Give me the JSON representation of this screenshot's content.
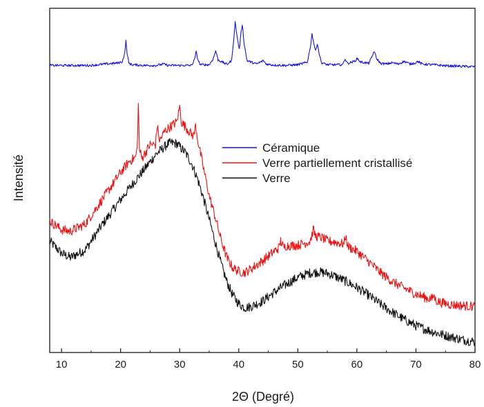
{
  "chart_data": {
    "type": "line",
    "title": "",
    "xlabel": "2Θ (Degré)",
    "ylabel": "Intensité",
    "xlim": [
      8,
      80
    ],
    "ylim": [
      0,
      100
    ],
    "xticks": [
      10,
      20,
      30,
      40,
      50,
      60,
      70,
      80
    ],
    "xtick_labels": [
      "10",
      "20",
      "30",
      "40",
      "50",
      "60",
      "70",
      "80"
    ],
    "yticks_shown": false,
    "grid": false,
    "legend_position": "center-right",
    "series": [
      {
        "name": "Céramique",
        "color": "#1010e8",
        "x": [
          8,
          12,
          15,
          18,
          19.5,
          20.3,
          20.7,
          20.9,
          21.1,
          21.4,
          22,
          24,
          26,
          27.3,
          28,
          30,
          32,
          32.5,
          32.8,
          33.1,
          33.5,
          35,
          35.7,
          36.1,
          36.5,
          38,
          38.8,
          39.2,
          39.4,
          39.7,
          40.1,
          40.4,
          40.6,
          40.9,
          41.4,
          43,
          44.2,
          44.6,
          46,
          48,
          50,
          51.6,
          52.1,
          52.4,
          52.7,
          53,
          53.3,
          53.6,
          54,
          55,
          57.6,
          58,
          58.4,
          59.6,
          60.1,
          60.6,
          62,
          62.6,
          62.9,
          63.3,
          64,
          65,
          66,
          67,
          68,
          69,
          70,
          70.3,
          71,
          73,
          75,
          77,
          80
        ],
        "y": [
          83.4,
          83.4,
          83.4,
          83.9,
          84.1,
          84.5,
          87,
          90.5,
          87,
          84,
          83.6,
          83.4,
          83.4,
          83.8,
          83.4,
          83.4,
          83.4,
          85,
          87.3,
          85,
          83.6,
          83.6,
          85.4,
          87.7,
          85,
          83.7,
          84.8,
          92,
          95.9,
          92,
          88,
          93,
          95.4,
          90,
          84.8,
          83.8,
          84.8,
          83.8,
          83.5,
          83.4,
          83.6,
          84.3,
          88.5,
          92.5,
          90,
          87.5,
          89.9,
          87,
          84.2,
          83.6,
          83.6,
          85.4,
          84,
          84.6,
          85.4,
          84.4,
          84,
          86,
          87.6,
          85.5,
          84,
          83.8,
          84.2,
          83.8,
          84.6,
          83.8,
          84.2,
          84.6,
          83.8,
          83.6,
          83.3,
          83.2,
          83
        ]
      },
      {
        "name": "Verre partiellement cristallisé",
        "color": "#ee1111",
        "x": [
          8,
          10,
          11.5,
          14,
          17,
          20,
          21.5,
          22.5,
          22.8,
          23,
          23.2,
          23.6,
          25,
          25.9,
          26.2,
          26.6,
          27.5,
          28.5,
          29.5,
          29.8,
          30,
          30.3,
          31,
          32,
          32.4,
          32.7,
          33.1,
          34,
          35,
          36,
          37,
          38,
          39,
          40,
          41,
          42,
          44,
          46,
          46.8,
          47.1,
          47.6,
          48,
          50,
          52,
          52.4,
          52.6,
          53,
          54,
          55,
          56,
          57.8,
          58.1,
          58.5,
          60,
          62,
          64,
          66,
          68,
          70,
          72,
          72.8,
          73,
          73.3,
          74,
          76,
          78,
          80
        ],
        "y": [
          38.2,
          35.7,
          35.2,
          37.3,
          44.7,
          52.3,
          55.6,
          56.6,
          59,
          72,
          59,
          56.4,
          60.4,
          60.4,
          65.8,
          61.5,
          64.4,
          65.7,
          67,
          69.5,
          71.5,
          67,
          65.5,
          63.4,
          63,
          66,
          61.4,
          53.8,
          45.6,
          39.5,
          32.8,
          27.5,
          24.6,
          23.6,
          23.2,
          24.2,
          26.6,
          29.4,
          30.4,
          32.5,
          30.4,
          31,
          31.2,
          32.2,
          34,
          35.8,
          33.8,
          33.4,
          32.4,
          32.2,
          31.5,
          33.8,
          30.8,
          29.4,
          26.4,
          23.2,
          20.6,
          18.7,
          17,
          15.7,
          15.6,
          16.8,
          15.3,
          14.6,
          13.9,
          13.6,
          13.4
        ]
      },
      {
        "name": "Verre",
        "color": "#111111",
        "x": [
          8,
          10,
          11.5,
          14,
          17,
          20,
          22,
          24,
          26,
          28,
          28.5,
          29.5,
          31,
          32,
          33,
          34,
          35,
          36,
          37,
          38,
          39,
          40,
          41,
          42,
          44,
          46,
          48,
          50,
          52,
          53.5,
          55,
          56,
          58,
          60,
          62,
          64,
          66,
          68,
          70,
          72,
          74,
          76,
          78,
          80
        ],
        "y": [
          32.4,
          28.8,
          27.6,
          29.8,
          37.4,
          44.4,
          48.9,
          53.2,
          57.6,
          60.6,
          60.9,
          60.7,
          58,
          55,
          50.6,
          45,
          38.7,
          32.2,
          25.8,
          20.5,
          16.6,
          14.2,
          13,
          13.3,
          14.9,
          17.5,
          19.8,
          21.8,
          23.1,
          23.4,
          23,
          22.4,
          20.8,
          18.9,
          16.6,
          14,
          11.7,
          9.6,
          7.8,
          6.5,
          5.4,
          4.5,
          3.7,
          3.1
        ]
      }
    ]
  }
}
